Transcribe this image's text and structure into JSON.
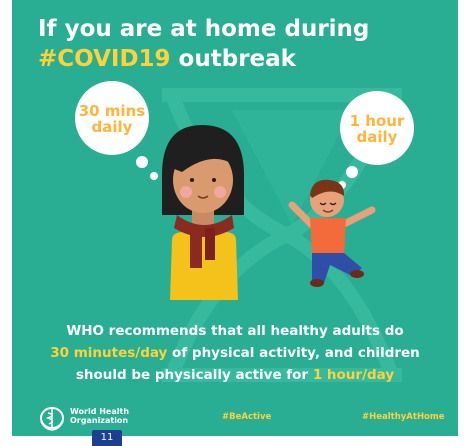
{
  "title": {
    "line1": "If you are at home during",
    "line2_accent": "#COVID19",
    "line2_rest": " outbreak"
  },
  "bubbles": {
    "adult": {
      "line1": "30 mins",
      "line2": "daily"
    },
    "child": {
      "line1": "1 hour",
      "line2": "daily"
    }
  },
  "message": {
    "line1": "WHO recommends that all healthy adults do",
    "line2_accent": "30 minutes/day",
    "line2_rest": " of physical activity, and children",
    "line3_start": "should be physically active for ",
    "line3_accent": "1 hour/day"
  },
  "footer": {
    "org_line1": "World Health",
    "org_line2": "Organization",
    "hashtag1": "#BeActive",
    "hashtag2": "#HealthyAtHome"
  },
  "page_badge": "11",
  "colors": {
    "background": "#2aae93",
    "accent": "#ffd23a",
    "bubble_text": "#ffb43a"
  },
  "icons": [
    "hourglass-icon",
    "who-emblem-icon"
  ]
}
